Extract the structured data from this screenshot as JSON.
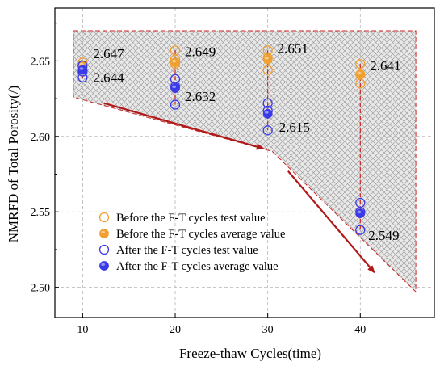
{
  "chart_data": {
    "type": "scatter",
    "title": "",
    "xlabel": "Freeze-thaw Cycles(time)",
    "ylabel": "NMRFD of Total Porosity(/)",
    "xlim": [
      7,
      48
    ],
    "ylim": [
      2.48,
      2.685
    ],
    "x_ticks": [
      10,
      20,
      30,
      40
    ],
    "y_ticks": [
      2.5,
      2.55,
      2.6,
      2.65
    ],
    "x_tick_labels": [
      "10",
      "20",
      "30",
      "40"
    ],
    "y_tick_labels": [
      "2.50",
      "2.55",
      "2.60",
      "2.65"
    ],
    "grid": true,
    "legend_position": "bottom-left",
    "colors": {
      "before": "#f0a030",
      "after": "#3a3ae8",
      "guide": "#cc2222",
      "arrow": "#b01818",
      "band_fill": "#e8e8e8",
      "band_hatch": "#9a9a9a"
    },
    "series": [
      {
        "name": "Before the F-T cycles test value",
        "style": "hollow",
        "color_key": "before",
        "points": [
          [
            10,
            2.649
          ],
          [
            10,
            2.646
          ],
          [
            10,
            2.643
          ],
          [
            20,
            2.657
          ],
          [
            20,
            2.651
          ],
          [
            20,
            2.648
          ],
          [
            30,
            2.657
          ],
          [
            30,
            2.652
          ],
          [
            30,
            2.644
          ],
          [
            40,
            2.648
          ],
          [
            40,
            2.641
          ],
          [
            40,
            2.635
          ]
        ]
      },
      {
        "name": "Before the F-T cycles average value",
        "style": "filled",
        "color_key": "before",
        "points": [
          [
            10,
            2.647
          ],
          [
            20,
            2.649
          ],
          [
            30,
            2.651
          ],
          [
            40,
            2.641
          ]
        ]
      },
      {
        "name": "After the F-T cycles test value",
        "style": "hollow",
        "color_key": "after",
        "points": [
          [
            10,
            2.647
          ],
          [
            10,
            2.643
          ],
          [
            10,
            2.639
          ],
          [
            20,
            2.638
          ],
          [
            20,
            2.633
          ],
          [
            20,
            2.621
          ],
          [
            30,
            2.622
          ],
          [
            30,
            2.617
          ],
          [
            30,
            2.604
          ],
          [
            40,
            2.556
          ],
          [
            40,
            2.55
          ],
          [
            40,
            2.538
          ]
        ]
      },
      {
        "name": "After the F-T cycles average value",
        "style": "filled",
        "color_key": "after",
        "points": [
          [
            10,
            2.644
          ],
          [
            20,
            2.632
          ],
          [
            30,
            2.615
          ],
          [
            40,
            2.549
          ]
        ]
      }
    ],
    "annotations": [
      {
        "text": "2.647",
        "x": 10,
        "y": 2.647
      },
      {
        "text": "2.644",
        "x": 10,
        "y": 2.644
      },
      {
        "text": "2.649",
        "x": 20,
        "y": 2.649
      },
      {
        "text": "2.632",
        "x": 20,
        "y": 2.632
      },
      {
        "text": "2.651",
        "x": 30,
        "y": 2.651
      },
      {
        "text": "2.615",
        "x": 30,
        "y": 2.615
      },
      {
        "text": "2.641",
        "x": 40,
        "y": 2.641
      },
      {
        "text": "2.549",
        "x": 40,
        "y": 2.549
      }
    ],
    "band_polygon": [
      [
        9,
        2.67
      ],
      [
        46,
        2.67
      ],
      [
        46,
        2.497
      ],
      [
        30.5,
        2.59
      ],
      [
        9,
        2.626
      ]
    ],
    "trend_arrows": [
      {
        "from": [
          12.3,
          2.622
        ],
        "to": [
          29.5,
          2.592
        ]
      },
      {
        "from": [
          32.2,
          2.577
        ],
        "to": [
          41.5,
          2.51
        ]
      }
    ]
  }
}
